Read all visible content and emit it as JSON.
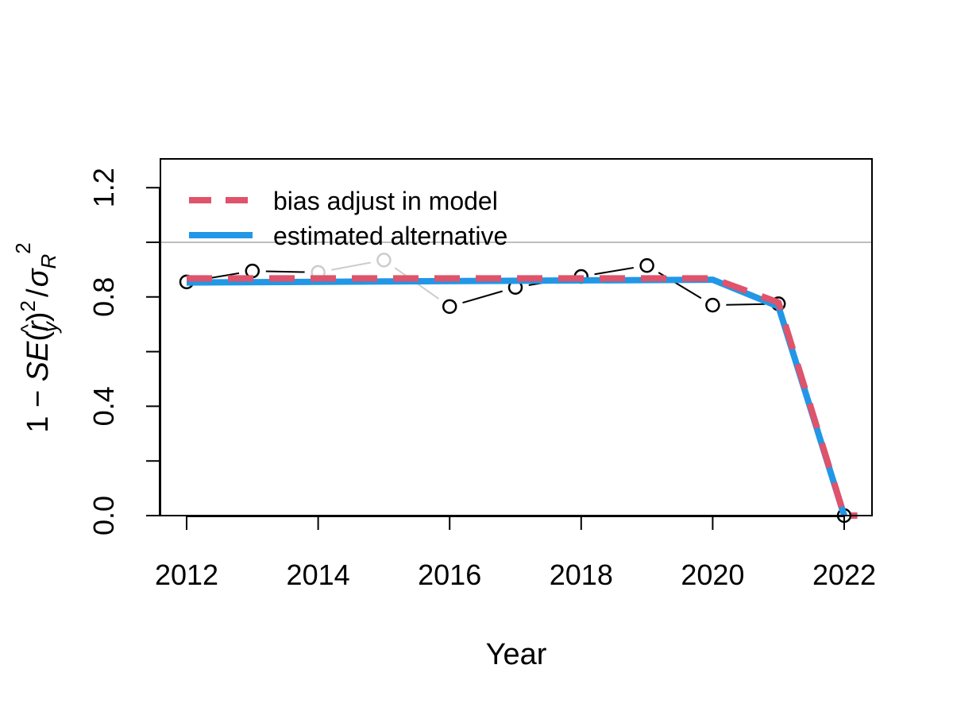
{
  "chart_data": {
    "type": "line",
    "xlabel": "Year",
    "ylabel": {
      "prefix": "1 − ",
      "se": "SE",
      "r": "r",
      "hat": "^",
      "sub_y": "y",
      "sq": "2",
      "slash": "/",
      "sigma": "σ",
      "sub_R": "R",
      "sq2": "2"
    },
    "xlim": [
      2011.6,
      2022.4
    ],
    "ylim": [
      0,
      1.3
    ],
    "x_ticks": [
      2012,
      2014,
      2016,
      2018,
      2020,
      2022
    ],
    "x_tick_labels": [
      "2012",
      "2014",
      "2016",
      "2018",
      "2020",
      "2022"
    ],
    "y_ticks": [
      0.0,
      0.2,
      0.4,
      0.6,
      0.8,
      1.0,
      1.2
    ],
    "y_tick_labels": [
      "0.0",
      "",
      "0.4",
      "",
      "0.8",
      "",
      "1.2"
    ],
    "reference_line": {
      "y": 1.0,
      "color": "#bebebe"
    },
    "observed": {
      "x": [
        2012,
        2013,
        2014,
        2015,
        2016,
        2017,
        2018,
        2019,
        2020,
        2021,
        2022
      ],
      "y": [
        0.855,
        0.895,
        0.89,
        0.935,
        0.765,
        0.835,
        0.875,
        0.915,
        0.77,
        0.775,
        0.0
      ],
      "color": "#000000",
      "grey_segments": [
        2,
        3
      ]
    },
    "series": [
      {
        "name": "estimated alternative",
        "x": [
          2012,
          2020,
          2021,
          2022
        ],
        "y": [
          0.853,
          0.863,
          0.765,
          0.0
        ],
        "color": "#2297e6",
        "style": "solid"
      },
      {
        "name": "bias adjust in model",
        "x": [
          2012,
          2020,
          2021,
          2022,
          2022.2
        ],
        "y": [
          0.868,
          0.868,
          0.78,
          0.0,
          0.0
        ],
        "color": "#df536b",
        "style": "dashed"
      }
    ],
    "legend": {
      "position": "top-left",
      "entries": [
        {
          "label": "bias adjust in model",
          "color": "#df536b",
          "style": "dashed"
        },
        {
          "label": "estimated alternative",
          "color": "#2297e6",
          "style": "solid"
        }
      ]
    }
  }
}
